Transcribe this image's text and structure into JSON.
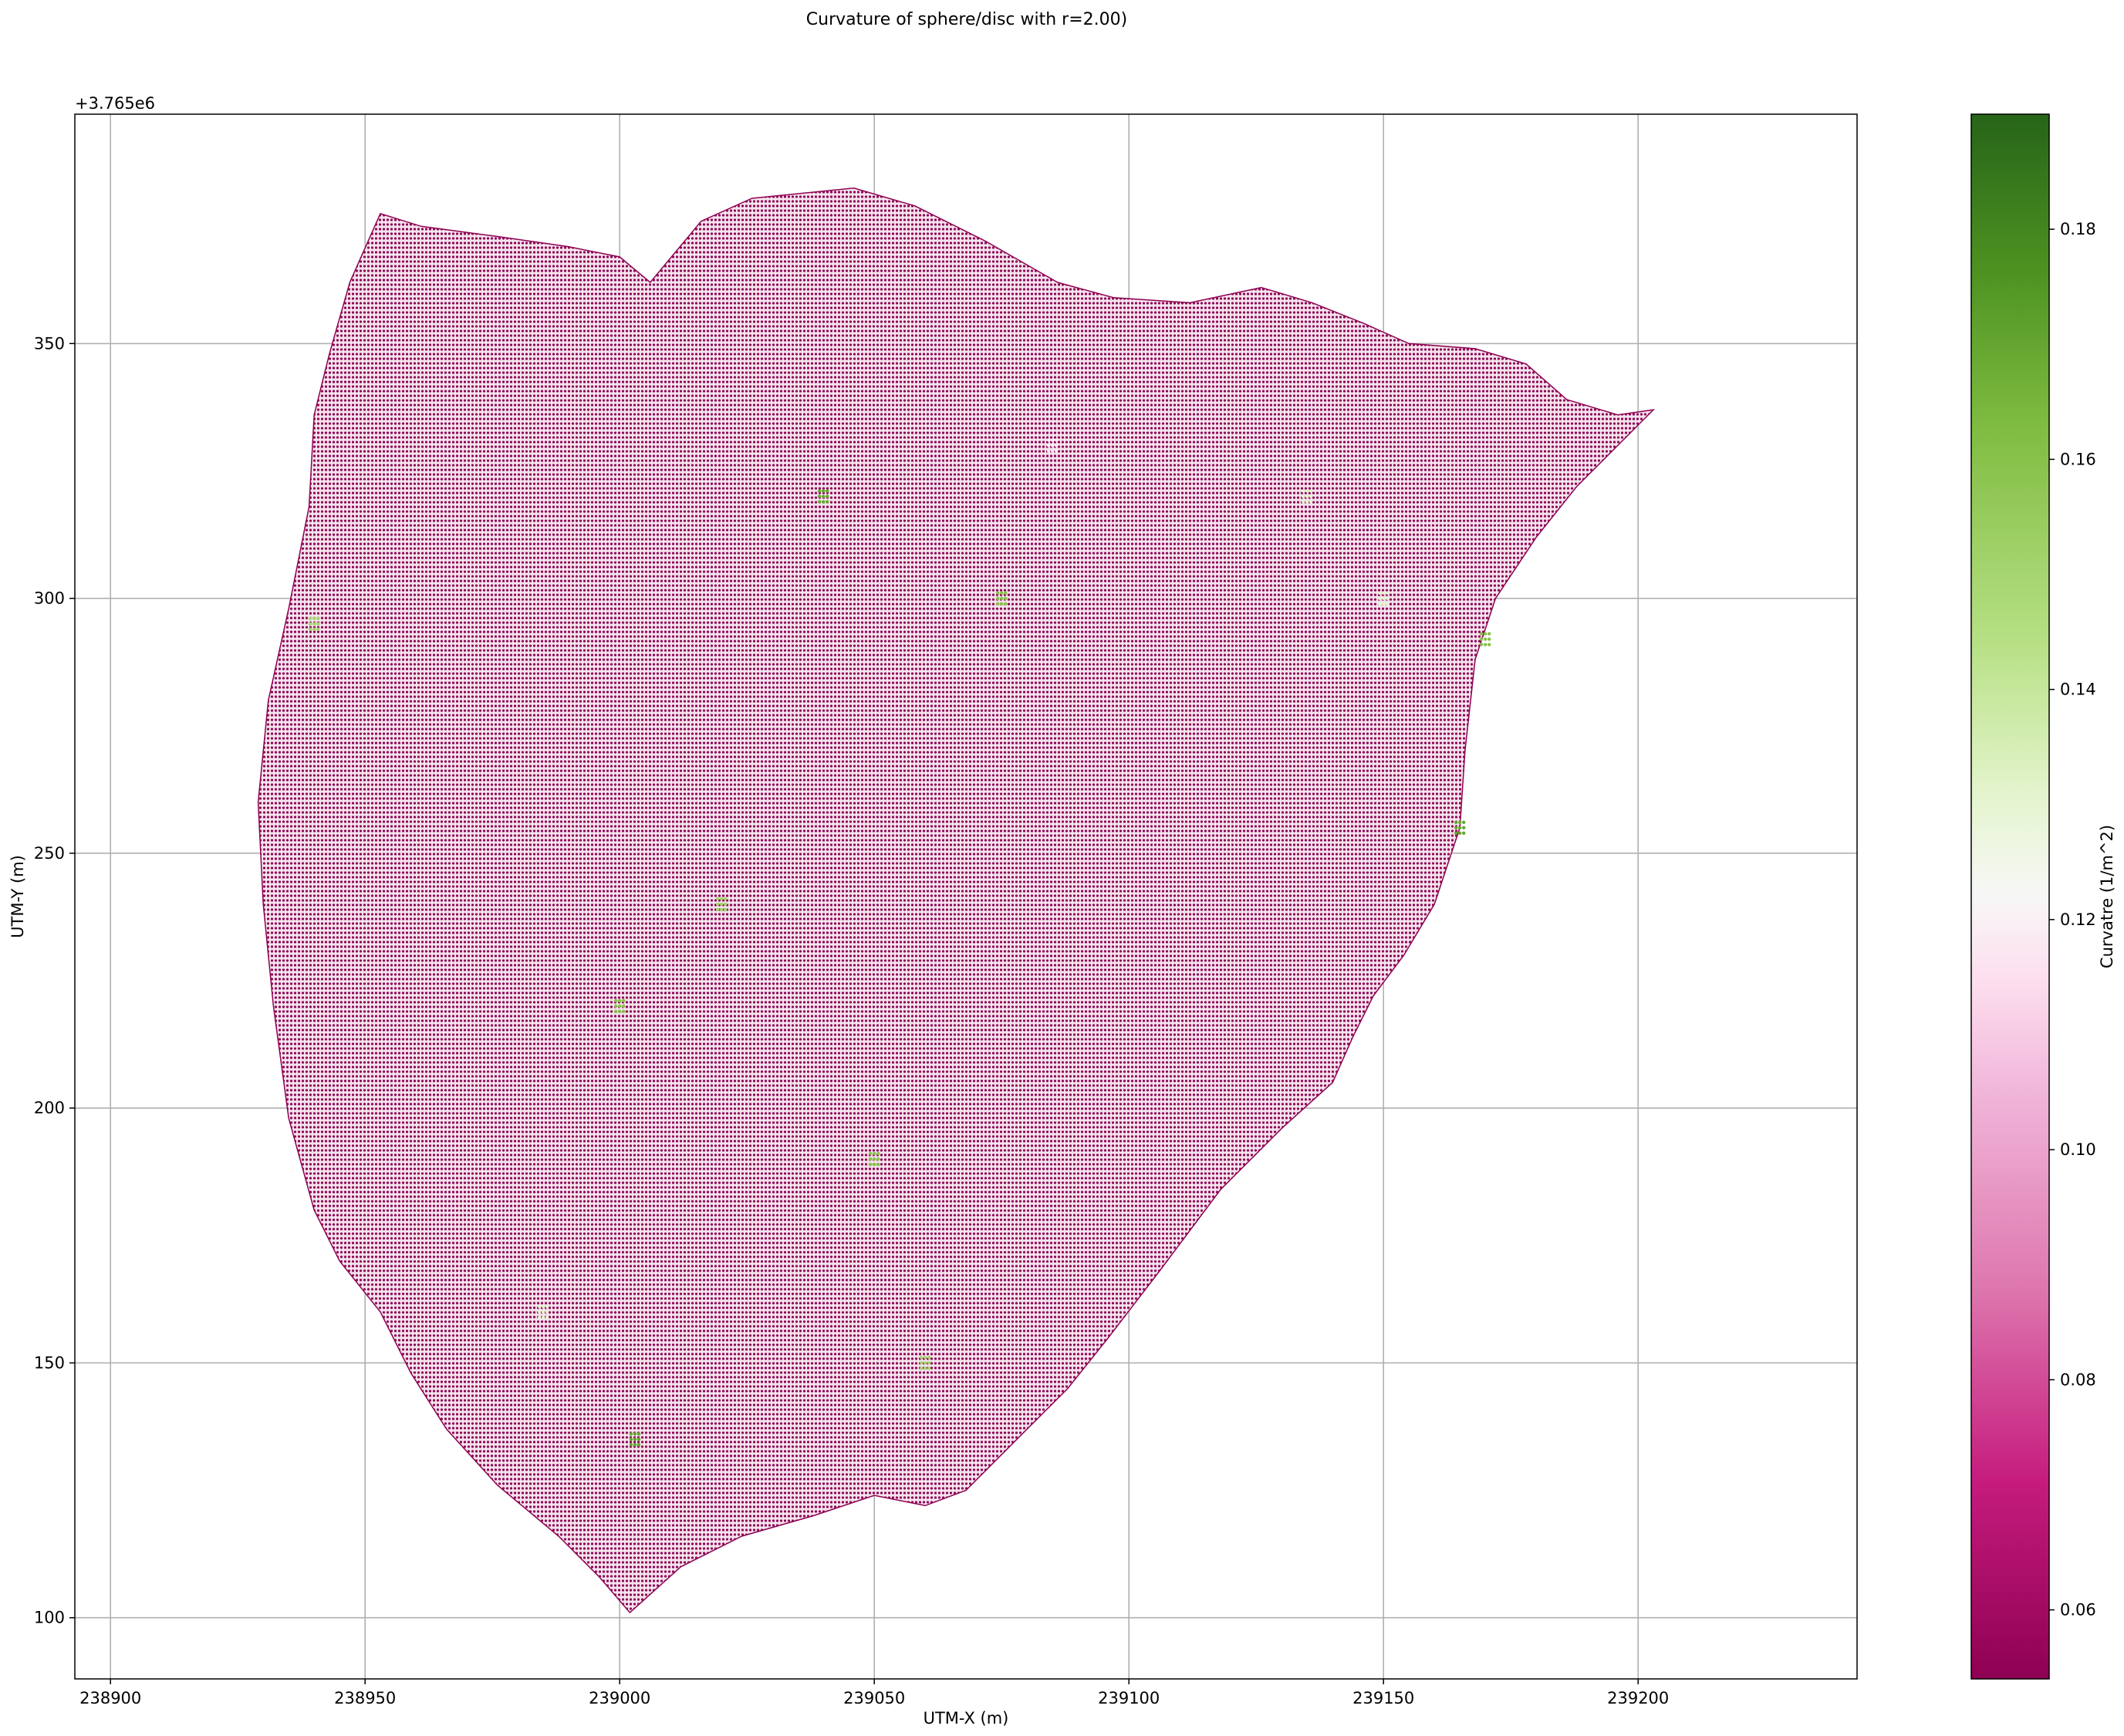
{
  "chart_data": {
    "type": "scatter",
    "title": "Curvature of sphere/disc with r=2.00)",
    "xlabel": "UTM-X (m)",
    "ylabel": "UTM-Y (m)",
    "y_offset_label": "+3.765e6",
    "xlim": [
      238893,
      239243
    ],
    "ylim": [
      88,
      395
    ],
    "xticks": [
      238900,
      238950,
      239000,
      239050,
      239100,
      239150,
      239200
    ],
    "yticks": [
      100,
      150,
      200,
      250,
      300,
      350
    ],
    "grid": true,
    "colormap": "PiYG",
    "colorbar": {
      "label": "Curvatre (1/m^2)",
      "range": [
        0.054,
        0.19
      ],
      "ticks": [
        0.06,
        0.08,
        0.1,
        0.12,
        0.14,
        0.16,
        0.18
      ],
      "tick_labels": [
        "0.06",
        "0.08",
        "0.10",
        "0.12",
        "0.14",
        "0.16",
        "0.18"
      ]
    },
    "colors": {
      "low": "#8e0152",
      "mid_low": "#de77ae",
      "mid": "#f7f7f7",
      "mid_high": "#b8e186",
      "high": "#276419"
    },
    "region_outline": [
      [
        238953,
        375.5
      ],
      [
        238961,
        373
      ],
      [
        238976,
        371
      ],
      [
        238990,
        369
      ],
      [
        239000,
        367
      ],
      [
        239006,
        362
      ],
      [
        239016,
        374
      ],
      [
        239026,
        378.5
      ],
      [
        239046,
        380.5
      ],
      [
        239058,
        377
      ],
      [
        239072,
        370
      ],
      [
        239086,
        362
      ],
      [
        239097,
        359
      ],
      [
        239112,
        358
      ],
      [
        239126,
        361
      ],
      [
        239136,
        358
      ],
      [
        239146,
        354
      ],
      [
        239155,
        350
      ],
      [
        239168,
        349
      ],
      [
        239178,
        346
      ],
      [
        239186,
        339
      ],
      [
        239196,
        336
      ],
      [
        239203,
        337
      ],
      [
        239196,
        330
      ],
      [
        239188,
        322
      ],
      [
        239180,
        312
      ],
      [
        239172,
        300
      ],
      [
        239168,
        288
      ],
      [
        239166,
        270
      ],
      [
        239165,
        255
      ],
      [
        239160,
        240
      ],
      [
        239154,
        230
      ],
      [
        239148,
        222
      ],
      [
        239144,
        214
      ],
      [
        239140,
        205
      ],
      [
        239130,
        196
      ],
      [
        239118,
        184
      ],
      [
        239106,
        168
      ],
      [
        239096,
        155
      ],
      [
        239088,
        145
      ],
      [
        239078,
        135
      ],
      [
        239068,
        125
      ],
      [
        239060,
        122
      ],
      [
        239050,
        124
      ],
      [
        239038,
        120
      ],
      [
        239024,
        116
      ],
      [
        239012,
        110
      ],
      [
        239002,
        101
      ],
      [
        238996,
        108
      ],
      [
        238988,
        116
      ],
      [
        238976,
        126
      ],
      [
        238966,
        137
      ],
      [
        238959,
        148
      ],
      [
        238953,
        160
      ],
      [
        238945,
        170
      ],
      [
        238940,
        180
      ],
      [
        238935,
        198
      ],
      [
        238932,
        220
      ],
      [
        238930,
        240
      ],
      [
        238929,
        260
      ],
      [
        238931,
        280
      ],
      [
        238935,
        298
      ],
      [
        238939,
        318
      ],
      [
        238940,
        336
      ],
      [
        238943,
        348
      ],
      [
        238947,
        362
      ],
      [
        238953,
        375.5
      ]
    ],
    "sample_points": [
      {
        "x": 239040,
        "y": 320,
        "c": 0.17
      },
      {
        "x": 239050,
        "y": 190,
        "c": 0.16
      },
      {
        "x": 239003,
        "y": 135,
        "c": 0.17
      },
      {
        "x": 238940,
        "y": 295,
        "c": 0.15
      },
      {
        "x": 239000,
        "y": 220,
        "c": 0.16
      },
      {
        "x": 239075,
        "y": 300,
        "c": 0.16
      },
      {
        "x": 239165,
        "y": 255,
        "c": 0.17
      },
      {
        "x": 239170,
        "y": 292,
        "c": 0.16
      },
      {
        "x": 239135,
        "y": 320,
        "c": 0.13
      },
      {
        "x": 239085,
        "y": 330,
        "c": 0.12
      },
      {
        "x": 239150,
        "y": 300,
        "c": 0.13
      },
      {
        "x": 239060,
        "y": 150,
        "c": 0.15
      },
      {
        "x": 239020,
        "y": 240,
        "c": 0.15
      },
      {
        "x": 238985,
        "y": 160,
        "c": 0.13
      }
    ]
  }
}
